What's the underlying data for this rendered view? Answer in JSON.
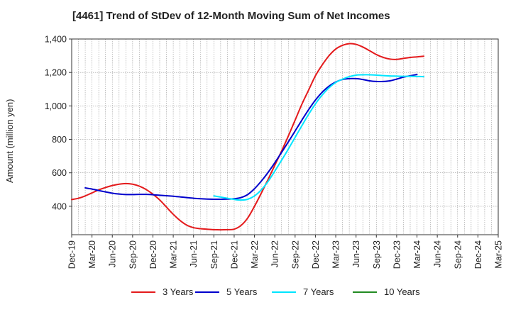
{
  "chart_data": {
    "type": "line",
    "title": "[4461]  Trend of StDev of 12-Month Moving Sum of Net Incomes",
    "ylabel": "Amount (million yen)",
    "xlabel": "",
    "ylim": [
      230,
      1400
    ],
    "yticks": [
      400,
      600,
      800,
      1000,
      1200,
      1400
    ],
    "ytick_labels": [
      "400",
      "600",
      "800",
      "1,000",
      "1,200",
      "1,400"
    ],
    "x_categories": [
      "Dec-19",
      "Mar-20",
      "Jun-20",
      "Sep-20",
      "Dec-20",
      "Mar-21",
      "Jun-21",
      "Sep-21",
      "Dec-21",
      "Mar-22",
      "Jun-22",
      "Sep-22",
      "Dec-22",
      "Mar-23",
      "Jun-23",
      "Sep-23",
      "Dec-23",
      "Mar-24",
      "Jun-24",
      "Sep-24",
      "Dec-24",
      "Mar-25"
    ],
    "grid": true,
    "legend_position": "bottom",
    "series": [
      {
        "name": "3 Years",
        "color": "#e41a1c",
        "start_index": 0,
        "values": [
          440,
          448,
          462,
          480,
          498,
          512,
          524,
          532,
          536,
          532,
          520,
          500,
          472,
          438,
          395,
          352,
          315,
          287,
          272,
          266,
          263,
          260,
          259,
          260,
          263,
          285,
          330,
          400,
          478,
          560,
          645,
          730,
          820,
          915,
          1010,
          1095,
          1180,
          1245,
          1300,
          1340,
          1362,
          1372,
          1368,
          1352,
          1330,
          1307,
          1290,
          1280,
          1278,
          1284,
          1290,
          1293,
          1297
        ]
      },
      {
        "name": "5 Years",
        "color": "#0000cc",
        "start_index": 2,
        "values": [
          510,
          503,
          494,
          486,
          478,
          473,
          470,
          470,
          471,
          471,
          469,
          466,
          463,
          460,
          456,
          452,
          448,
          445,
          443,
          442,
          442,
          443,
          445,
          452,
          470,
          505,
          550,
          602,
          660,
          722,
          785,
          850,
          915,
          978,
          1035,
          1082,
          1118,
          1143,
          1158,
          1163,
          1163,
          1158,
          1150,
          1146,
          1146,
          1150,
          1160,
          1172,
          1180,
          1188
        ]
      },
      {
        "name": "7 Years",
        "color": "#00e5ff",
        "start_index": 21,
        "values": [
          462,
          455,
          448,
          441,
          437,
          442,
          462,
          498,
          548,
          610,
          675,
          742,
          812,
          882,
          950,
          1012,
          1065,
          1108,
          1140,
          1160,
          1175,
          1184,
          1186,
          1186,
          1184,
          1181,
          1179,
          1178,
          1177,
          1177,
          1176,
          1175
        ]
      },
      {
        "name": "10 Years",
        "color": "#228b22",
        "start_index": 0,
        "values": []
      }
    ]
  }
}
